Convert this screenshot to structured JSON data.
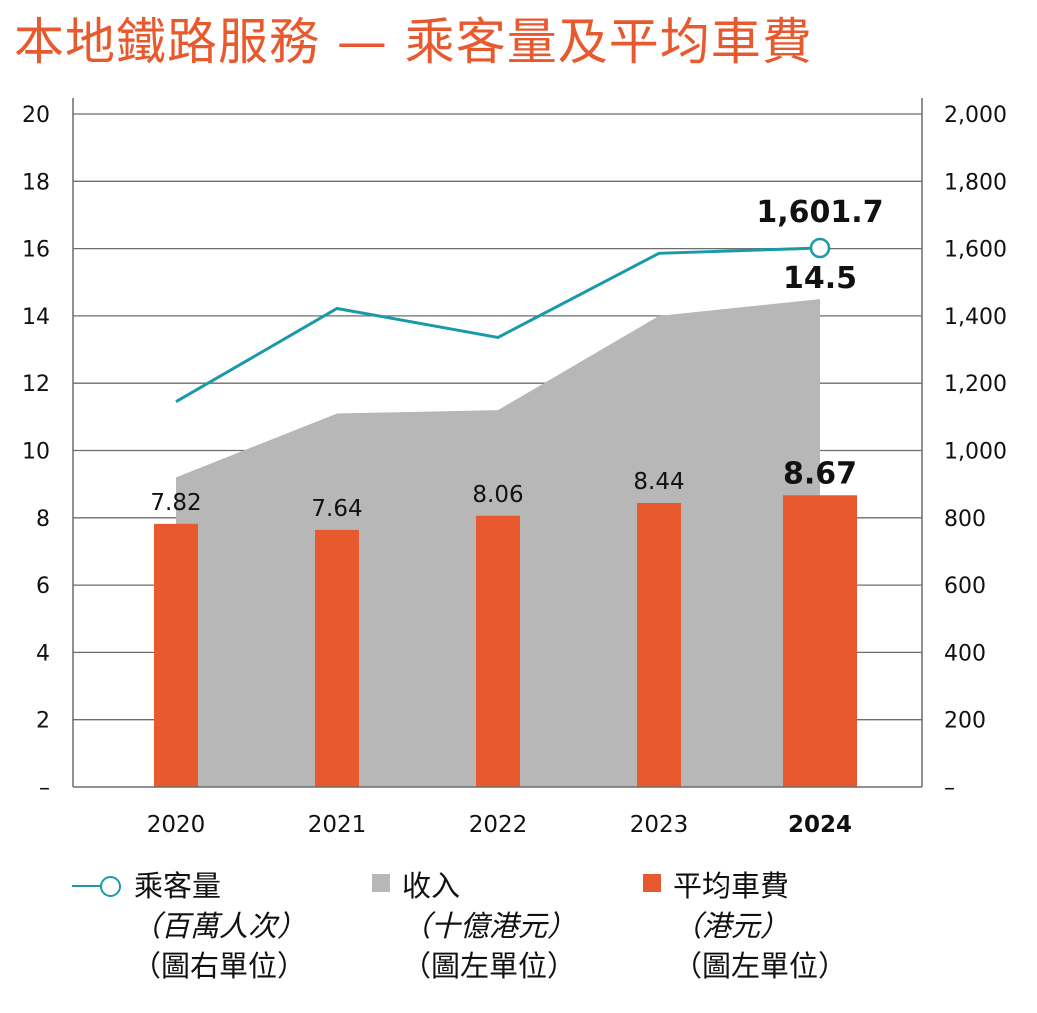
{
  "title": "本地鐵路服務 — 乘客量及平均車費",
  "colors": {
    "title": "#e8592e",
    "patronage_line": "#1a9aa8",
    "revenue_area": "#b6b7b6",
    "fare_bar": "#e8592e",
    "grid": "#6d6d6d"
  },
  "legend": [
    {
      "icon": "line-circle-marker",
      "label": "乘客量",
      "unit": "（百萬人次）",
      "axis_note": "（圖右單位）"
    },
    {
      "icon": "gray-square",
      "label": "收入",
      "unit": "（十億港元）",
      "axis_note": "（圖左單位）"
    },
    {
      "icon": "orange-square",
      "label": "平均車費",
      "unit": "（港元）",
      "axis_note": "（圖左單位）"
    }
  ],
  "chart_data": {
    "type": "bar",
    "title": "本地鐵路服務 — 乘客量及平均車費",
    "categories": [
      "2020",
      "2021",
      "2022",
      "2023",
      "2024"
    ],
    "highlight_category": "2024",
    "left_axis": {
      "ylim": [
        0,
        20
      ],
      "ticks": [
        0,
        2,
        4,
        6,
        8,
        10,
        12,
        14,
        16,
        18,
        20
      ],
      "tick_labels": [
        "–",
        "2",
        "4",
        "6",
        "8",
        "10",
        "12",
        "14",
        "16",
        "18",
        "20"
      ]
    },
    "right_axis": {
      "ylim": [
        0,
        2000
      ],
      "ticks": [
        0,
        200,
        400,
        600,
        800,
        1000,
        1200,
        1400,
        1600,
        1800,
        2000
      ],
      "tick_labels": [
        "–",
        "200",
        "400",
        "600",
        "800",
        "1,000",
        "1,200",
        "1,400",
        "1,600",
        "1,800",
        "2,000"
      ]
    },
    "grid": true,
    "legend_position": "bottom",
    "series": [
      {
        "name": "乘客量（百萬人次）",
        "type": "line",
        "axis": "right",
        "values": [
          1145,
          1422,
          1336,
          1586,
          1601.7
        ],
        "labels": [
          "",
          "",
          "",
          "",
          "1,601.7"
        ]
      },
      {
        "name": "收入（十億港元）",
        "type": "area",
        "axis": "left",
        "values": [
          9.2,
          11.1,
          11.2,
          14.0,
          14.5
        ],
        "labels": [
          "",
          "",
          "",
          "",
          "14.5"
        ]
      },
      {
        "name": "平均車費（港元）",
        "type": "bar",
        "axis": "left",
        "values": [
          7.82,
          7.64,
          8.06,
          8.44,
          8.67
        ],
        "labels": [
          "7.82",
          "7.64",
          "8.06",
          "8.44",
          "8.67"
        ]
      }
    ]
  }
}
